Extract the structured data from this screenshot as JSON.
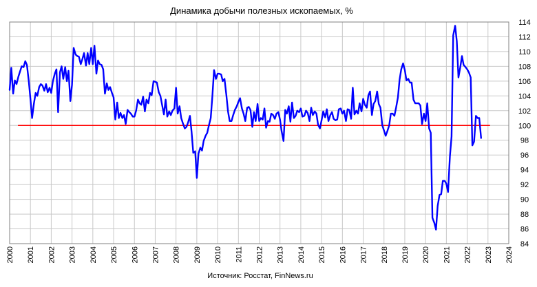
{
  "chart_data": {
    "type": "line",
    "title": "Динамика добычи полезных ископаемых, %",
    "source": "Источник: Росстат, FinNews.ru",
    "xlabel": "",
    "ylabel": "",
    "xlim": [
      2000,
      2024
    ],
    "ylim": [
      84,
      114
    ],
    "x_ticks": [
      "2000",
      "2001",
      "2002",
      "2003",
      "2004",
      "2005",
      "2006",
      "2007",
      "2008",
      "2009",
      "2010",
      "2011",
      "2012",
      "2013",
      "2014",
      "2015",
      "2016",
      "2017",
      "2018",
      "2019",
      "2020",
      "2021",
      "2022",
      "2023",
      "2024"
    ],
    "y_ticks": [
      "84",
      "86",
      "88",
      "90",
      "92",
      "94",
      "96",
      "98",
      "100",
      "102",
      "104",
      "106",
      "108",
      "110",
      "112",
      "114"
    ],
    "y_axis_side": "right",
    "grid": true,
    "reference_line": {
      "y": 100,
      "color": "#ff0000"
    },
    "series": [
      {
        "color": "#0000ff",
        "points": [
          [
            2000.0,
            104.8
          ],
          [
            2000.08,
            107.8
          ],
          [
            2000.17,
            104.3
          ],
          [
            2000.25,
            106.1
          ],
          [
            2000.33,
            105.6
          ],
          [
            2000.42,
            106.6
          ],
          [
            2000.5,
            107.3
          ],
          [
            2000.58,
            108.0
          ],
          [
            2000.67,
            107.9
          ],
          [
            2000.75,
            108.7
          ],
          [
            2000.83,
            108.2
          ],
          [
            2000.92,
            106.0
          ],
          [
            2001.0,
            103.6
          ],
          [
            2001.08,
            101.0
          ],
          [
            2001.17,
            103.0
          ],
          [
            2001.25,
            104.4
          ],
          [
            2001.33,
            104.0
          ],
          [
            2001.42,
            105.2
          ],
          [
            2001.5,
            105.6
          ],
          [
            2001.58,
            105.4
          ],
          [
            2001.67,
            104.7
          ],
          [
            2001.75,
            105.6
          ],
          [
            2001.83,
            104.5
          ],
          [
            2001.92,
            105.1
          ],
          [
            2002.0,
            104.4
          ],
          [
            2002.08,
            106.0
          ],
          [
            2002.17,
            107.0
          ],
          [
            2002.25,
            107.6
          ],
          [
            2002.33,
            101.8
          ],
          [
            2002.42,
            107.2
          ],
          [
            2002.5,
            108.0
          ],
          [
            2002.58,
            106.3
          ],
          [
            2002.67,
            107.9
          ],
          [
            2002.75,
            106.0
          ],
          [
            2002.83,
            107.4
          ],
          [
            2002.92,
            103.3
          ],
          [
            2003.0,
            105.5
          ],
          [
            2003.08,
            110.5
          ],
          [
            2003.17,
            109.6
          ],
          [
            2003.25,
            109.4
          ],
          [
            2003.33,
            109.3
          ],
          [
            2003.42,
            108.3
          ],
          [
            2003.5,
            109.0
          ],
          [
            2003.58,
            109.8
          ],
          [
            2003.67,
            108.1
          ],
          [
            2003.75,
            109.8
          ],
          [
            2003.83,
            108.3
          ],
          [
            2003.92,
            110.5
          ],
          [
            2004.0,
            108.3
          ],
          [
            2004.08,
            110.8
          ],
          [
            2004.17,
            107.0
          ],
          [
            2004.25,
            108.8
          ],
          [
            2004.33,
            108.3
          ],
          [
            2004.42,
            108.2
          ],
          [
            2004.5,
            107.6
          ],
          [
            2004.58,
            104.3
          ],
          [
            2004.67,
            105.7
          ],
          [
            2004.75,
            104.8
          ],
          [
            2004.83,
            105.2
          ],
          [
            2004.92,
            104.4
          ],
          [
            2005.0,
            103.8
          ],
          [
            2005.08,
            100.8
          ],
          [
            2005.17,
            103.1
          ],
          [
            2005.25,
            101.0
          ],
          [
            2005.33,
            101.7
          ],
          [
            2005.42,
            101.0
          ],
          [
            2005.5,
            101.4
          ],
          [
            2005.58,
            100.2
          ],
          [
            2005.67,
            102.1
          ],
          [
            2005.75,
            101.8
          ],
          [
            2005.83,
            101.6
          ],
          [
            2005.92,
            101.2
          ],
          [
            2006.0,
            101.2
          ],
          [
            2006.08,
            102.0
          ],
          [
            2006.17,
            103.5
          ],
          [
            2006.25,
            103.0
          ],
          [
            2006.33,
            102.8
          ],
          [
            2006.42,
            103.9
          ],
          [
            2006.5,
            101.9
          ],
          [
            2006.58,
            103.5
          ],
          [
            2006.67,
            103.0
          ],
          [
            2006.75,
            104.4
          ],
          [
            2006.83,
            104.1
          ],
          [
            2006.92,
            106.0
          ],
          [
            2007.0,
            105.9
          ],
          [
            2007.08,
            105.8
          ],
          [
            2007.17,
            104.5
          ],
          [
            2007.25,
            104.0
          ],
          [
            2007.33,
            102.8
          ],
          [
            2007.42,
            101.5
          ],
          [
            2007.5,
            103.5
          ],
          [
            2007.58,
            101.2
          ],
          [
            2007.67,
            101.9
          ],
          [
            2007.75,
            101.4
          ],
          [
            2007.83,
            102.0
          ],
          [
            2007.92,
            102.3
          ],
          [
            2008.0,
            105.1
          ],
          [
            2008.08,
            101.6
          ],
          [
            2008.17,
            102.6
          ],
          [
            2008.25,
            101.0
          ],
          [
            2008.33,
            100.3
          ],
          [
            2008.42,
            99.6
          ],
          [
            2008.5,
            99.8
          ],
          [
            2008.58,
            100.4
          ],
          [
            2008.67,
            101.3
          ],
          [
            2008.75,
            99.1
          ],
          [
            2008.83,
            96.3
          ],
          [
            2008.92,
            96.5
          ],
          [
            2009.0,
            92.9
          ],
          [
            2009.08,
            96.2
          ],
          [
            2009.17,
            97.0
          ],
          [
            2009.25,
            96.6
          ],
          [
            2009.33,
            97.9
          ],
          [
            2009.42,
            98.6
          ],
          [
            2009.5,
            99.0
          ],
          [
            2009.58,
            100.0
          ],
          [
            2009.67,
            101.0
          ],
          [
            2009.75,
            104.0
          ],
          [
            2009.83,
            107.5
          ],
          [
            2009.92,
            106.3
          ],
          [
            2010.0,
            107.0
          ],
          [
            2010.08,
            107.0
          ],
          [
            2010.17,
            106.9
          ],
          [
            2010.25,
            106.0
          ],
          [
            2010.33,
            106.3
          ],
          [
            2010.42,
            104.1
          ],
          [
            2010.5,
            101.9
          ],
          [
            2010.58,
            100.6
          ],
          [
            2010.67,
            100.6
          ],
          [
            2010.75,
            101.4
          ],
          [
            2010.83,
            102.1
          ],
          [
            2010.92,
            102.6
          ],
          [
            2011.0,
            103.2
          ],
          [
            2011.08,
            103.7
          ],
          [
            2011.17,
            102.3
          ],
          [
            2011.25,
            101.6
          ],
          [
            2011.33,
            100.6
          ],
          [
            2011.42,
            102.4
          ],
          [
            2011.5,
            102.5
          ],
          [
            2011.58,
            102.1
          ],
          [
            2011.67,
            99.8
          ],
          [
            2011.75,
            101.8
          ],
          [
            2011.83,
            100.6
          ],
          [
            2011.92,
            102.9
          ],
          [
            2012.0,
            100.6
          ],
          [
            2012.08,
            101.0
          ],
          [
            2012.17,
            100.8
          ],
          [
            2012.25,
            102.3
          ],
          [
            2012.33,
            99.7
          ],
          [
            2012.42,
            100.6
          ],
          [
            2012.5,
            100.5
          ],
          [
            2012.58,
            101.6
          ],
          [
            2012.67,
            101.4
          ],
          [
            2012.75,
            100.9
          ],
          [
            2012.83,
            101.6
          ],
          [
            2012.92,
            101.8
          ],
          [
            2013.0,
            100.8
          ],
          [
            2013.08,
            99.2
          ],
          [
            2013.17,
            97.9
          ],
          [
            2013.25,
            102.1
          ],
          [
            2013.33,
            101.6
          ],
          [
            2013.42,
            102.6
          ],
          [
            2013.5,
            100.5
          ],
          [
            2013.58,
            103.1
          ],
          [
            2013.67,
            101.0
          ],
          [
            2013.75,
            101.3
          ],
          [
            2013.83,
            102.0
          ],
          [
            2013.92,
            101.8
          ],
          [
            2014.0,
            102.3
          ],
          [
            2014.08,
            101.2
          ],
          [
            2014.17,
            101.3
          ],
          [
            2014.25,
            102.0
          ],
          [
            2014.33,
            101.7
          ],
          [
            2014.42,
            100.6
          ],
          [
            2014.5,
            102.4
          ],
          [
            2014.58,
            101.4
          ],
          [
            2014.67,
            101.9
          ],
          [
            2014.75,
            101.6
          ],
          [
            2014.83,
            100.1
          ],
          [
            2014.92,
            99.6
          ],
          [
            2015.0,
            100.7
          ],
          [
            2015.08,
            101.9
          ],
          [
            2015.17,
            101.1
          ],
          [
            2015.25,
            102.2
          ],
          [
            2015.33,
            100.6
          ],
          [
            2015.42,
            101.4
          ],
          [
            2015.5,
            101.8
          ],
          [
            2015.58,
            100.9
          ],
          [
            2015.67,
            100.7
          ],
          [
            2015.75,
            100.8
          ],
          [
            2015.83,
            102.2
          ],
          [
            2015.92,
            102.3
          ],
          [
            2016.0,
            101.6
          ],
          [
            2016.08,
            102.0
          ],
          [
            2016.17,
            100.6
          ],
          [
            2016.25,
            102.2
          ],
          [
            2016.33,
            102.1
          ],
          [
            2016.42,
            100.9
          ],
          [
            2016.5,
            105.1
          ],
          [
            2016.58,
            101.5
          ],
          [
            2016.67,
            102.0
          ],
          [
            2016.75,
            101.6
          ],
          [
            2016.83,
            103.0
          ],
          [
            2016.92,
            101.9
          ],
          [
            2017.0,
            103.6
          ],
          [
            2017.08,
            102.8
          ],
          [
            2017.17,
            102.4
          ],
          [
            2017.25,
            104.1
          ],
          [
            2017.33,
            104.6
          ],
          [
            2017.42,
            101.4
          ],
          [
            2017.5,
            102.9
          ],
          [
            2017.58,
            103.3
          ],
          [
            2017.67,
            104.6
          ],
          [
            2017.75,
            102.9
          ],
          [
            2017.83,
            102.4
          ],
          [
            2017.92,
            100.0
          ],
          [
            2018.0,
            99.3
          ],
          [
            2018.08,
            98.6
          ],
          [
            2018.17,
            99.3
          ],
          [
            2018.25,
            100.0
          ],
          [
            2018.33,
            101.6
          ],
          [
            2018.42,
            101.6
          ],
          [
            2018.5,
            101.3
          ],
          [
            2018.58,
            102.4
          ],
          [
            2018.67,
            103.8
          ],
          [
            2018.75,
            106.2
          ],
          [
            2018.83,
            107.6
          ],
          [
            2018.92,
            108.4
          ],
          [
            2019.0,
            107.5
          ],
          [
            2019.08,
            106.1
          ],
          [
            2019.17,
            106.3
          ],
          [
            2019.25,
            105.8
          ],
          [
            2019.33,
            105.8
          ],
          [
            2019.42,
            103.5
          ],
          [
            2019.5,
            103.0
          ],
          [
            2019.58,
            103.0
          ],
          [
            2019.67,
            103.0
          ],
          [
            2019.75,
            102.7
          ],
          [
            2019.83,
            100.2
          ],
          [
            2019.92,
            101.6
          ],
          [
            2020.0,
            100.6
          ],
          [
            2020.08,
            103.0
          ],
          [
            2020.17,
            99.6
          ],
          [
            2020.25,
            99.0
          ],
          [
            2020.33,
            87.5
          ],
          [
            2020.42,
            86.8
          ],
          [
            2020.5,
            85.9
          ],
          [
            2020.58,
            89.1
          ],
          [
            2020.67,
            90.6
          ],
          [
            2020.75,
            90.7
          ],
          [
            2020.83,
            92.5
          ],
          [
            2020.92,
            92.5
          ],
          [
            2021.0,
            92.1
          ],
          [
            2021.08,
            91.0
          ],
          [
            2021.17,
            95.8
          ],
          [
            2021.25,
            98.5
          ],
          [
            2021.33,
            112.2
          ],
          [
            2021.42,
            113.5
          ],
          [
            2021.5,
            111.4
          ],
          [
            2021.58,
            106.5
          ],
          [
            2021.67,
            107.9
          ],
          [
            2021.75,
            109.4
          ],
          [
            2021.83,
            108.2
          ],
          [
            2021.92,
            107.9
          ],
          [
            2022.0,
            107.6
          ],
          [
            2022.08,
            107.2
          ],
          [
            2022.17,
            106.5
          ],
          [
            2022.25,
            97.3
          ],
          [
            2022.33,
            97.8
          ],
          [
            2022.42,
            101.3
          ],
          [
            2022.5,
            101.0
          ],
          [
            2022.58,
            101.0
          ],
          [
            2022.67,
            98.3
          ]
        ]
      }
    ]
  }
}
